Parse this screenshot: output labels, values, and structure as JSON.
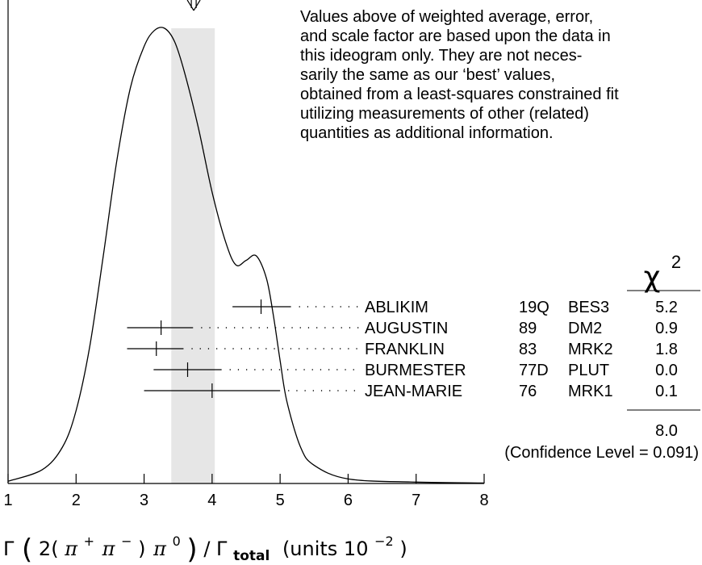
{
  "chart_data": {
    "type": "ideogram",
    "x_ticks": [
      1,
      2,
      3,
      4,
      5,
      6,
      7,
      8
    ],
    "xlim": [
      1,
      8
    ],
    "xlabel_parts": {
      "gamma": "Γ",
      "paren_open": "(",
      "two": "2(",
      "pi1": "π",
      "sup_plus": "+",
      "pi2": "π",
      "sup_minus": "−",
      "close1": ")",
      "pi3": "π",
      "sup_zero": "0",
      "paren_close": ")",
      "slash": "/",
      "gamma2": "Γ",
      "sub_total": "total",
      "units": "(units 10",
      "units_exp": "−2",
      "units_close": ")"
    },
    "weighted_average": 3.73,
    "error_band": [
      3.4,
      4.04
    ],
    "ideogram_curve": [
      [
        1.0,
        0.005
      ],
      [
        1.5,
        0.03
      ],
      [
        1.8,
        0.08
      ],
      [
        2.0,
        0.16
      ],
      [
        2.2,
        0.3
      ],
      [
        2.4,
        0.5
      ],
      [
        2.6,
        0.71
      ],
      [
        2.8,
        0.87
      ],
      [
        3.0,
        0.96
      ],
      [
        3.15,
        0.995
      ],
      [
        3.3,
        1.0
      ],
      [
        3.45,
        0.97
      ],
      [
        3.6,
        0.9
      ],
      [
        3.8,
        0.78
      ],
      [
        4.0,
        0.64
      ],
      [
        4.2,
        0.53
      ],
      [
        4.35,
        0.48
      ],
      [
        4.5,
        0.49
      ],
      [
        4.65,
        0.5
      ],
      [
        4.8,
        0.45
      ],
      [
        4.9,
        0.37
      ],
      [
        5.0,
        0.27
      ],
      [
        5.1,
        0.18
      ],
      [
        5.3,
        0.08
      ],
      [
        5.5,
        0.04
      ],
      [
        6.0,
        0.01
      ],
      [
        7.0,
        0.003
      ],
      [
        8.0,
        0.001
      ]
    ],
    "measurements": [
      {
        "author": "ABLIKIM",
        "year": "19Q",
        "experiment": "BES3",
        "value": 4.72,
        "error_low": 0.42,
        "error_high": 0.44,
        "chi2": "5.2"
      },
      {
        "author": "AUGUSTIN",
        "year": "89",
        "experiment": "DM2",
        "value": 3.25,
        "error_low": 0.5,
        "error_high": 0.47,
        "chi2": "0.9"
      },
      {
        "author": "FRANKLIN",
        "year": "83",
        "experiment": "MRK2",
        "value": 3.18,
        "error_low": 0.43,
        "error_high": 0.4,
        "chi2": "1.8"
      },
      {
        "author": "BURMESTER",
        "year": "77D",
        "experiment": "PLUT",
        "value": 3.64,
        "error_low": 0.5,
        "error_high": 0.5,
        "chi2": "0.0"
      },
      {
        "author": "JEAN-MARIE",
        "year": "76",
        "experiment": "MRK1",
        "value": 4.0,
        "error_low": 1.0,
        "error_high": 1.0,
        "chi2": "0.1"
      }
    ],
    "chi2_header": "χ",
    "chi2_header_exp": "2",
    "chi2_total": "8.0",
    "confidence_level": "(Confidence Level = 0.091)"
  },
  "note_lines": [
    "Values above of weighted average, error,",
    "and scale factor are based upon the data in",
    "this ideogram only.  They are not neces-",
    "sarily the same as our ‘best’ values,",
    "obtained from a least-squares constrained fit",
    "utilizing measurements of other (related)",
    "quantities as additional information."
  ]
}
